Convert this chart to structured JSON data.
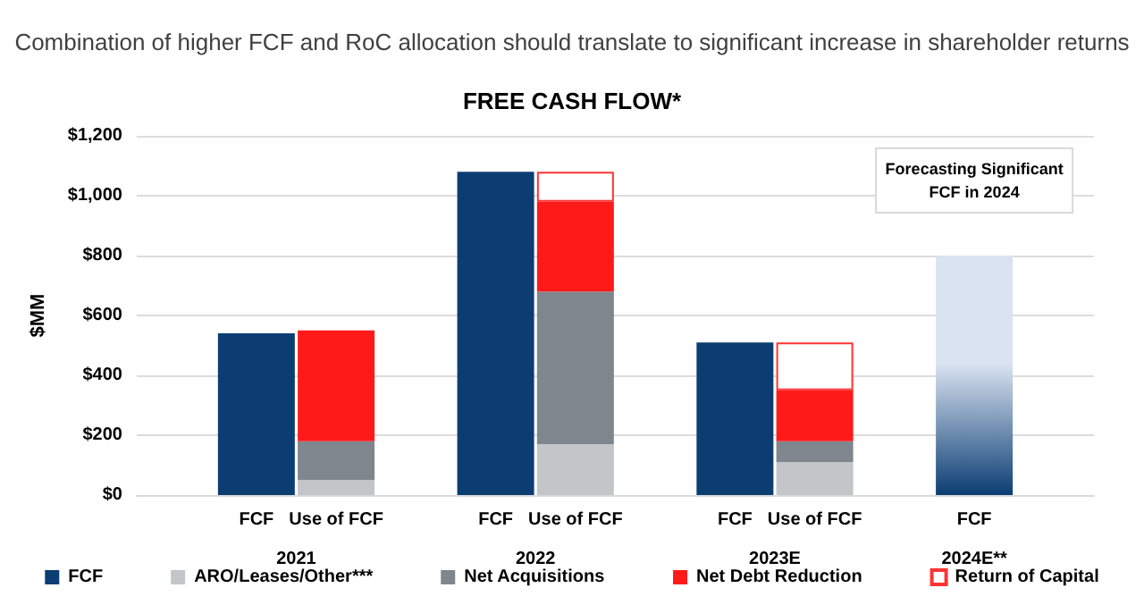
{
  "chart_data": {
    "type": "bar",
    "title": "Combination of higher FCF and RoC allocation should translate to significant increase in shareholder returns",
    "subtitle": "FREE CASH FLOW*",
    "ylabel": "$MM",
    "categories": [
      null,
      "FCF",
      "Use of FCF",
      null,
      "FCF",
      "Use of FCF",
      null,
      "FCF",
      "Use of FCF",
      null,
      "FCF",
      null
    ],
    "stacked": true,
    "series": [
      {
        "name": "FCF",
        "color": "#0b3d73",
        "colors": [
          null,
          "#0b3d73",
          null,
          null,
          "#0b3d73",
          null,
          null,
          "#0b3d73",
          null,
          null,
          "#dae3f1",
          null
        ],
        "values": [
          null,
          540,
          null,
          null,
          1080,
          null,
          null,
          510,
          null,
          null,
          800,
          null
        ]
      },
      {
        "name": "ARO/Leases/Other***",
        "color": "#c3c5c8",
        "values": [
          null,
          null,
          50,
          null,
          null,
          170,
          null,
          null,
          110,
          null,
          null,
          null
        ]
      },
      {
        "name": "Net Acquisitions",
        "color": "#7f868e",
        "values": [
          null,
          null,
          130,
          null,
          null,
          510,
          null,
          null,
          70,
          null,
          null,
          null
        ]
      },
      {
        "name": "Net Debt Reduction",
        "color": "#ff1a1a",
        "values": [
          null,
          null,
          370,
          null,
          null,
          300,
          null,
          null,
          170,
          null,
          null,
          null
        ]
      },
      {
        "name": "Return of Capital",
        "color": "#ff3333",
        "values": [
          null,
          null,
          null,
          null,
          null,
          100,
          null,
          null,
          160,
          null,
          null,
          null
        ]
      }
    ],
    "annotations": [
      "2021",
      "2022",
      "2023E",
      "2024E**",
      "Forecasting Significant\nFCF in 2024"
    ],
    "ylim": [
      0,
      1200
    ],
    "yticks": [
      {
        "value": 0,
        "label": "$0"
      },
      {
        "value": 200,
        "label": "$200"
      },
      {
        "value": 400,
        "label": "$400"
      },
      {
        "value": 600,
        "label": "$600"
      },
      {
        "value": 800,
        "label": "$800"
      },
      {
        "value": 1000,
        "label": "$1,000"
      },
      {
        "value": 1200,
        "label": "$1,200"
      }
    ],
    "grid": "y",
    "legend": "bottom"
  }
}
